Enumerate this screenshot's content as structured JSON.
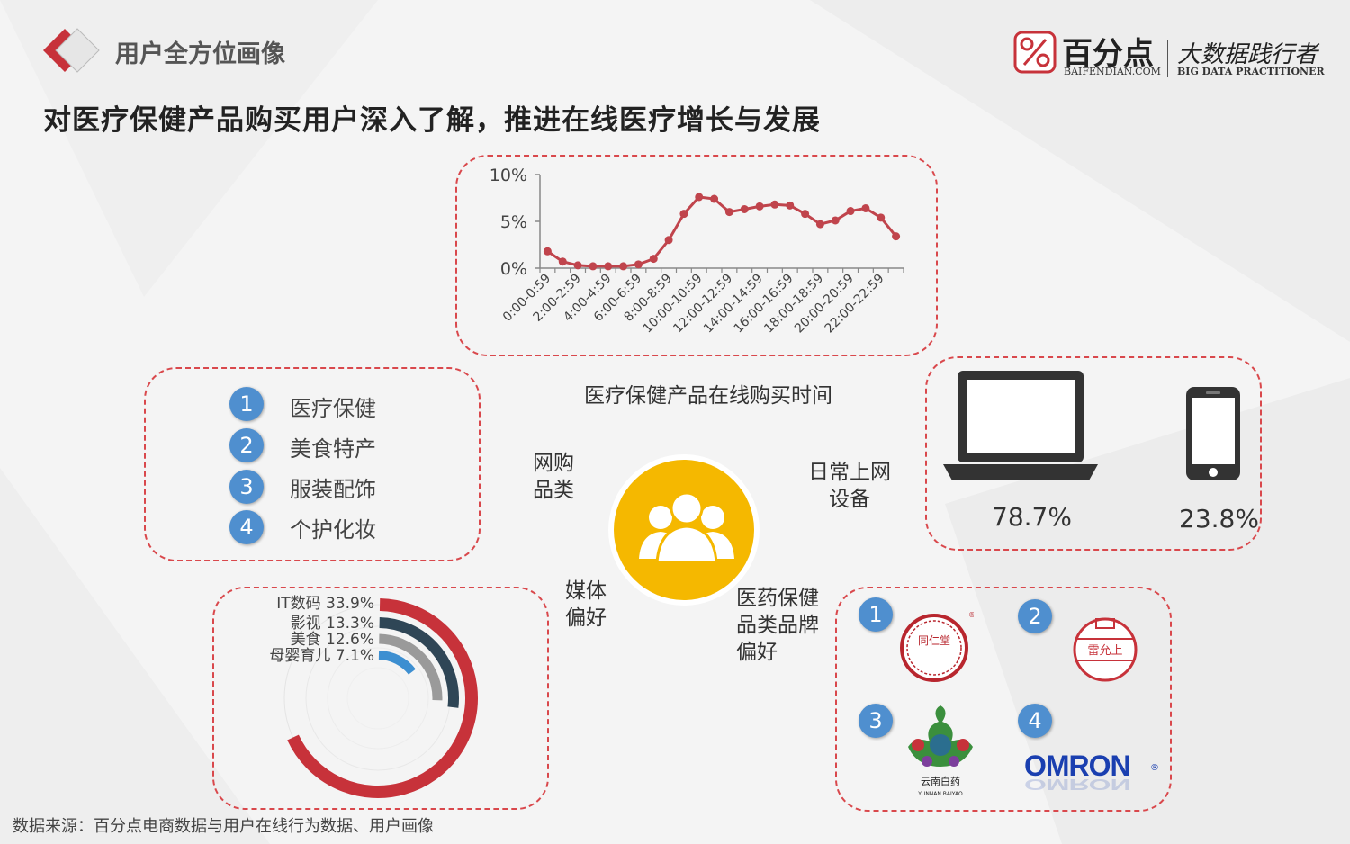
{
  "header": {
    "section_title": "用户全方位画像",
    "headline": "对医疗保健产品购买用户深入了解，推进在线医疗增长与发展",
    "brand_name": "百分点",
    "brand_domain": "BAIFENDIAN.COM",
    "slogan_cn": "大数据践行者",
    "slogan_en": "BIG DATA PRACTITIONER"
  },
  "center": {
    "shopping_label": "网购\n品类",
    "device_label": "日常上网\n设备",
    "media_label": "媒体\n偏好",
    "brand_label": "医药保健\n品类品牌\n偏好",
    "time_caption": "医疗保健产品在线购买时间"
  },
  "categories": [
    {
      "rank": "1",
      "label": "医疗保健"
    },
    {
      "rank": "2",
      "label": "美食特产"
    },
    {
      "rank": "3",
      "label": "服装配饰"
    },
    {
      "rank": "4",
      "label": "个护化妆"
    }
  ],
  "devices": {
    "laptop_pct": "78.7%",
    "phone_pct": "23.8%"
  },
  "brands": [
    {
      "rank": "1",
      "name": "同仁堂"
    },
    {
      "rank": "2",
      "name": "雷允上"
    },
    {
      "rank": "3",
      "name": "云南白药",
      "en": "YUNNAN BAIYAO"
    },
    {
      "rank": "4",
      "name": "OMRON"
    }
  ],
  "source": "数据来源：百分点电商数据与用户在线行为数据、用户画像",
  "colors": {
    "accent_red": "#c7323a",
    "rank_blue": "#4f8fcf",
    "hub_yellow": "#f5b800",
    "donut": [
      "#c7323a",
      "#2f4656",
      "#9a9a9a",
      "#3d8fd1"
    ]
  },
  "chart_data": [
    {
      "type": "line",
      "x": [
        "0:00-0:59",
        "1:00-1:59",
        "2:00-2:59",
        "3:00-3:59",
        "4:00-4:59",
        "5:00-5:59",
        "6:00-6:59",
        "7:00-7:59",
        "8:00-8:59",
        "9:00-9:59",
        "10:00-10:59",
        "11:00-11:59",
        "12:00-12:59",
        "13:00-13:59",
        "14:00-14:59",
        "15:00-15:59",
        "16:00-16:59",
        "17:00-17:59",
        "18:00-18:59",
        "19:00-19:59",
        "20:00-20:59",
        "21:00-21:59",
        "22:00-22:59",
        "23:00-23:59"
      ],
      "x_tick_labels": [
        "0:00-0:59",
        "2:00-2:59",
        "4:00-4:59",
        "6:00-6:59",
        "8:00-8:59",
        "10:00-10:59",
        "12:00-12:59",
        "14:00-14:59",
        "16:00-16:59",
        "18:00-18:59",
        "20:00-20:59",
        "22:00-22:59"
      ],
      "y": [
        1.8,
        0.7,
        0.3,
        0.2,
        0.2,
        0.2,
        0.4,
        1.0,
        3.0,
        5.8,
        7.6,
        7.4,
        6.0,
        6.3,
        6.6,
        6.8,
        6.7,
        5.8,
        4.7,
        5.1,
        6.1,
        6.4,
        5.4,
        3.4
      ],
      "ylim": [
        0,
        10
      ],
      "y_ticks": [
        "0%",
        "5%",
        "10%"
      ],
      "title": "医疗保健产品在线购买时间"
    },
    {
      "type": "pie",
      "subtype": "radial-bar",
      "categories": [
        "IT数码",
        "影视",
        "美食",
        "母婴育儿"
      ],
      "values": [
        33.9,
        13.3,
        12.6,
        7.1
      ],
      "value_labels": [
        "33.9%",
        "13.3%",
        "12.6%",
        "7.1%"
      ]
    }
  ]
}
